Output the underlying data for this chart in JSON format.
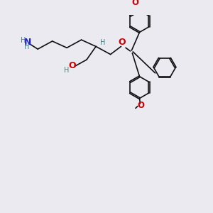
{
  "bg_color": "#eaeaf0",
  "bond_color": "#111111",
  "N_color": "#2020cc",
  "O_color": "#cc0000",
  "H_color": "#408080",
  "lw": 1.2,
  "ring_r": 0.165,
  "xlim": [
    0,
    3.0
  ],
  "ylim": [
    0,
    3.0
  ]
}
